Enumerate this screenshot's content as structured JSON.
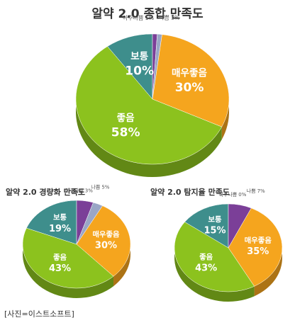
{
  "chart_data": [
    {
      "type": "pie",
      "title": "알약 2.0 종합 만족도",
      "categories": [
        "보통",
        "나쁨",
        "아주나쁨",
        "매우좋음",
        "좋음"
      ],
      "values": [
        10,
        1,
        1,
        30,
        58
      ],
      "value_labels": [
        "10%",
        "1%",
        "1%",
        "30%",
        "58%"
      ],
      "colors": [
        "#3e8e8c",
        "#7b3f98",
        "#9aa6c6",
        "#f5a51e",
        "#8cc21e"
      ]
    },
    {
      "type": "pie",
      "title": "알약 2.0 경량화 만족도",
      "categories": [
        "보통",
        "나쁨",
        "아주나쁨",
        "매우좋음",
        "좋음"
      ],
      "values": [
        19,
        5,
        3,
        30,
        43
      ],
      "value_labels": [
        "19%",
        "5%",
        "3%",
        "30%",
        "43%"
      ],
      "colors": [
        "#3e8e8c",
        "#7b3f98",
        "#9aa6c6",
        "#f5a51e",
        "#8cc21e"
      ]
    },
    {
      "type": "pie",
      "title": "알약 2.0 탐지율 만족도",
      "categories": [
        "보통",
        "나쁨",
        "아주나쁨",
        "매우좋음",
        "좋음"
      ],
      "values": [
        15,
        7,
        0,
        35,
        43
      ],
      "value_labels": [
        "15%",
        "7%",
        "0%",
        "35%",
        "43%"
      ],
      "colors": [
        "#3e8e8c",
        "#7b3f98",
        "#9aa6c6",
        "#f5a51e",
        "#8cc21e"
      ]
    }
  ],
  "caption": "[사진=이스트소프트]"
}
